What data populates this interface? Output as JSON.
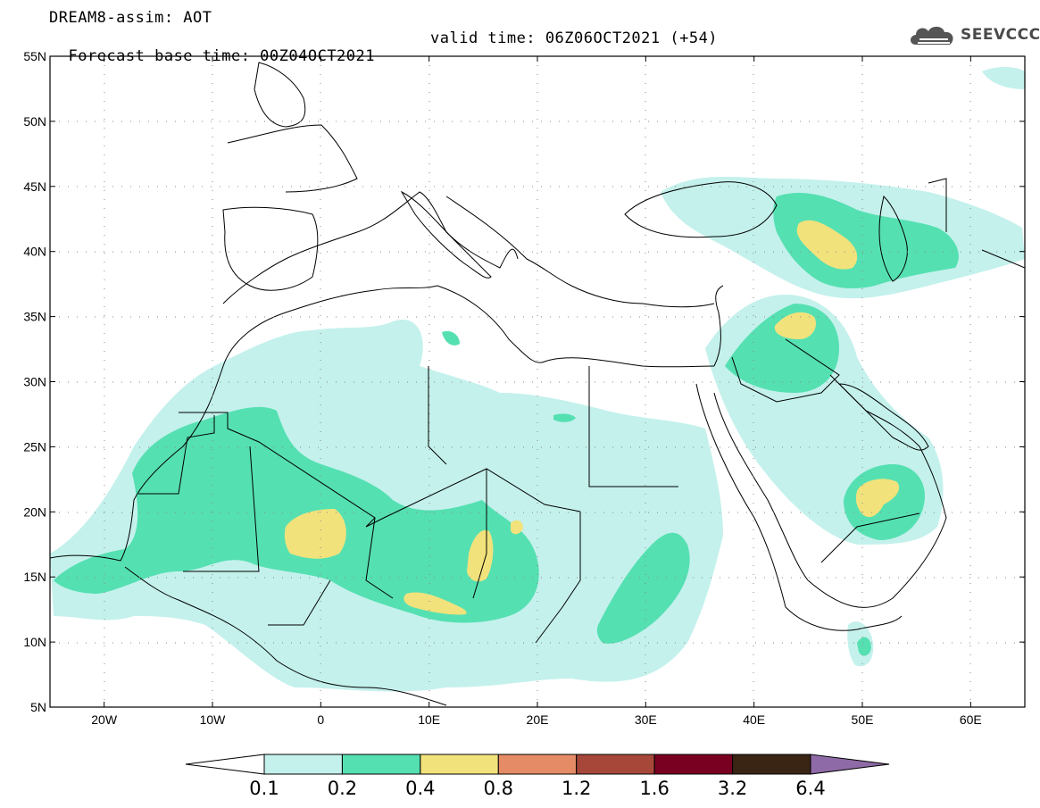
{
  "title": {
    "line1": "DREAM8-assim: AOT",
    "line2_base": "Forecast base time: 00Z04OCT2021",
    "line2_valid": "valid time: 06Z06OCT2021 (+54)"
  },
  "logo": {
    "text": "SEEVCCC",
    "icon": "cloud-icon"
  },
  "map": {
    "lon_range": [
      -25,
      65
    ],
    "lat_range": [
      5,
      55
    ],
    "lat_ticks": [
      {
        "value": 55,
        "label": "55N"
      },
      {
        "value": 50,
        "label": "50N"
      },
      {
        "value": 45,
        "label": "45N"
      },
      {
        "value": 40,
        "label": "40N"
      },
      {
        "value": 35,
        "label": "35N"
      },
      {
        "value": 30,
        "label": "30N"
      },
      {
        "value": 25,
        "label": "25N"
      },
      {
        "value": 20,
        "label": "20N"
      },
      {
        "value": 15,
        "label": "15N"
      },
      {
        "value": 10,
        "label": "10N"
      },
      {
        "value": 5,
        "label": "5N"
      }
    ],
    "lon_ticks": [
      {
        "value": -20,
        "label": "20W"
      },
      {
        "value": -10,
        "label": "10W"
      },
      {
        "value": 0,
        "label": "0"
      },
      {
        "value": 10,
        "label": "10E"
      },
      {
        "value": 20,
        "label": "20E"
      },
      {
        "value": 30,
        "label": "30E"
      },
      {
        "value": 40,
        "label": "40E"
      },
      {
        "value": 50,
        "label": "50E"
      },
      {
        "value": 60,
        "label": "60E"
      }
    ],
    "grid": "dotted"
  },
  "colorbar": {
    "labels": [
      "0.1",
      "0.2",
      "0.4",
      "0.8",
      "1.2",
      "1.6",
      "3.2",
      "6.4"
    ],
    "colors": [
      "#ffffff",
      "#c4f1ec",
      "#55e0b2",
      "#f2e27c",
      "#e58c66",
      "#a6473a",
      "#7a0022",
      "#3a2514",
      "#8e6aa6"
    ]
  }
}
